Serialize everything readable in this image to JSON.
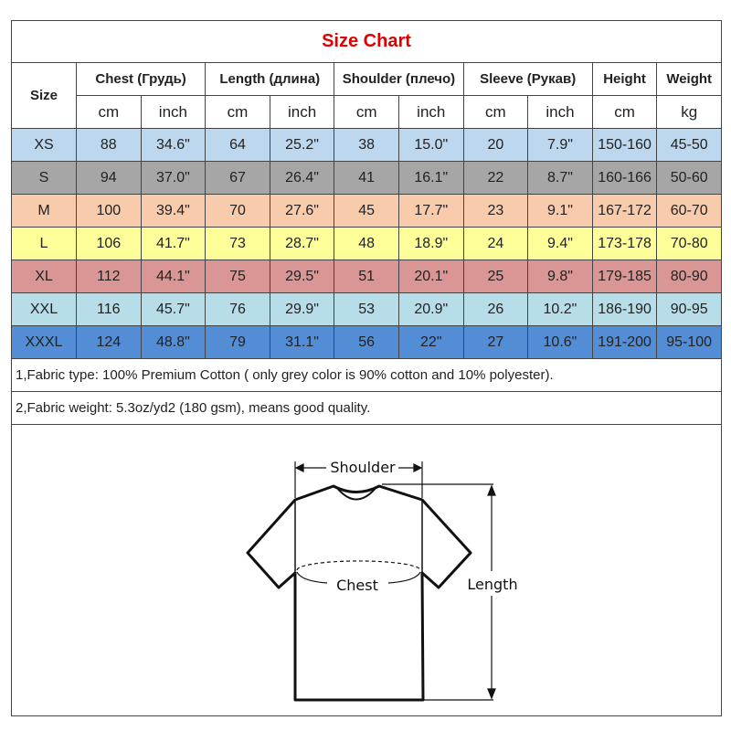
{
  "title": "Size Chart",
  "headers": {
    "size": "Size",
    "groups": [
      "Chest  (Грудь)",
      "Length (длина)",
      "Shoulder (плечо)",
      "Sleeve (Рукав)",
      "Height",
      "Weight"
    ],
    "units": [
      "cm",
      "inch",
      "cm",
      "inch",
      "cm",
      "inch",
      "cm",
      "inch",
      "cm",
      "kg"
    ]
  },
  "rows": [
    {
      "size": "XS",
      "color": "#bdd7ee",
      "values": [
        "88",
        "34.6\"",
        "64",
        "25.2\"",
        "38",
        "15.0\"",
        "20",
        "7.9\"",
        "150-160",
        "45-50"
      ]
    },
    {
      "size": "S",
      "color": "#a6a6a6",
      "values": [
        "94",
        "37.0\"",
        "67",
        "26.4\"",
        "41",
        "16.1\"",
        "22",
        "8.7\"",
        "160-166",
        "50-60"
      ]
    },
    {
      "size": "M",
      "color": "#f8cbad",
      "values": [
        "100",
        "39.4\"",
        "70",
        "27.6\"",
        "45",
        "17.7\"",
        "23",
        "9.1\"",
        "167-172",
        "60-70"
      ]
    },
    {
      "size": "L",
      "color": "#ffff99",
      "values": [
        "106",
        "41.7\"",
        "73",
        "28.7\"",
        "48",
        "18.9\"",
        "24",
        "9.4\"",
        "173-178",
        "70-80"
      ]
    },
    {
      "size": "XL",
      "color": "#da9694",
      "values": [
        "112",
        "44.1\"",
        "75",
        "29.5\"",
        "51",
        "20.1\"",
        "25",
        "9.8\"",
        "179-185",
        "80-90"
      ]
    },
    {
      "size": "XXL",
      "color": "#b7dee8",
      "values": [
        "116",
        "45.7\"",
        "76",
        "29.9\"",
        "53",
        "20.9\"",
        "26",
        "10.2\"",
        "186-190",
        "90-95"
      ]
    },
    {
      "size": "XXXL",
      "color": "#538dd5",
      "values": [
        "124",
        "48.8\"",
        "79",
        "31.1\"",
        "56",
        "22\"",
        "27",
        "10.6\"",
        "191-200",
        "95-100"
      ]
    }
  ],
  "notes": [
    "1,Fabric type: 100% Premium Cotton ( only grey color is 90% cotton and 10% polyester).",
    "2,Fabric weight: 5.3oz/yd2 (180 gsm), means good quality."
  ],
  "diagram": {
    "shoulder": "Shoulder",
    "chest": "Chest",
    "length": "Length"
  }
}
